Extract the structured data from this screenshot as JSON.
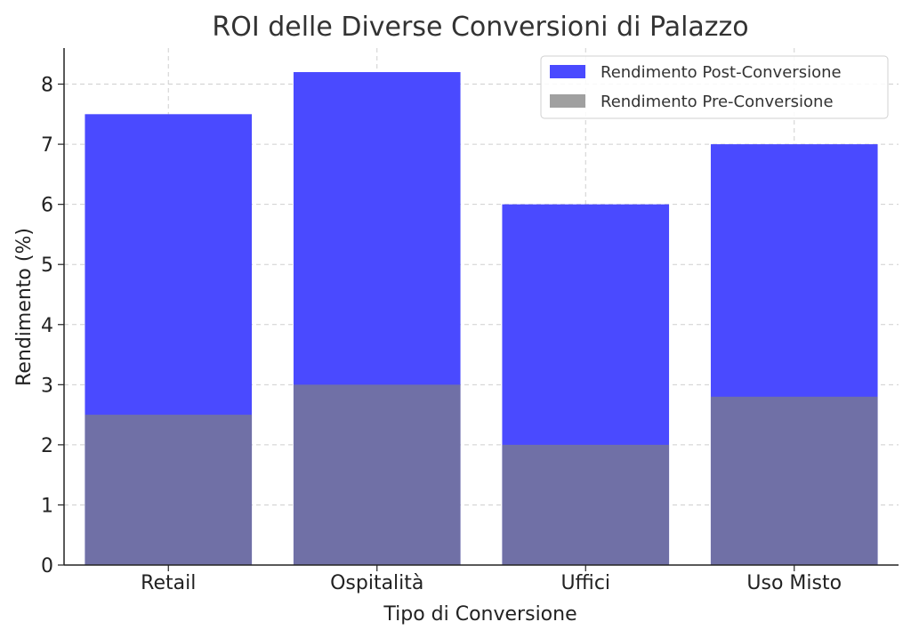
{
  "chart_data": {
    "type": "bar",
    "title": "ROI delle Diverse Conversioni di Palazzo",
    "xlabel": "Tipo di Conversione",
    "ylabel": "Rendimento (%)",
    "categories": [
      "Retail",
      "Ospitalità",
      "Uffici",
      "Uso Misto"
    ],
    "series": [
      {
        "name": "Rendimento Post-Conversione",
        "values": [
          7.5,
          8.2,
          6.0,
          7.0
        ],
        "color": "#4a4aff"
      },
      {
        "name": "Rendimento Pre-Conversione",
        "values": [
          2.5,
          3.0,
          2.0,
          2.8
        ],
        "color": "#a0a0a0"
      }
    ],
    "overlay_color": "#7070a6",
    "ylim": [
      0,
      8.6
    ],
    "yticks": [
      0,
      1,
      2,
      3,
      4,
      5,
      6,
      7,
      8
    ],
    "grid": true,
    "legend_position": "top-right"
  }
}
